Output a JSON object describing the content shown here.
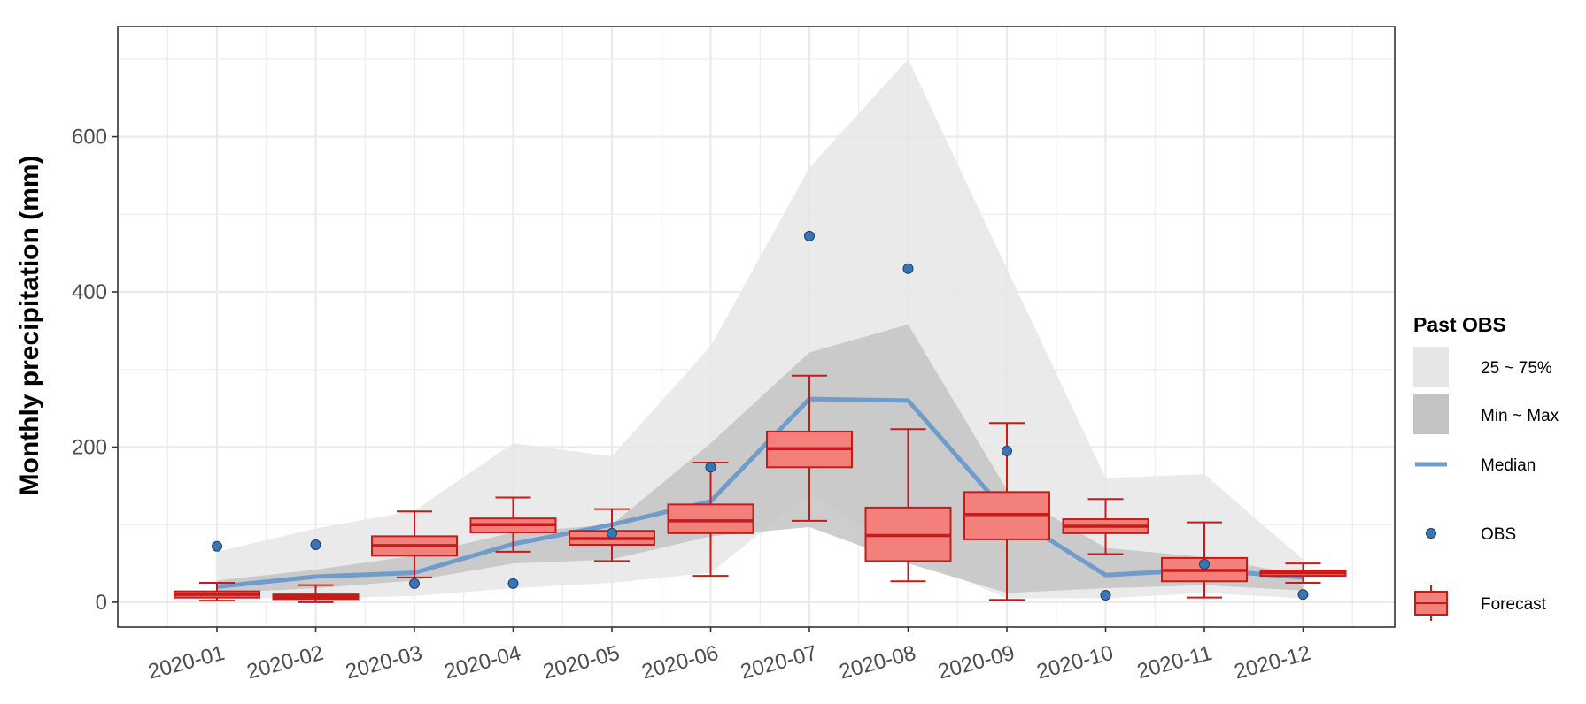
{
  "chart_data": {
    "type": "box",
    "title": "",
    "xlabel": "",
    "ylabel": "Monthly precipitation (mm)",
    "ylim": [
      -32,
      742
    ],
    "yticks": [
      0,
      200,
      400,
      600
    ],
    "grid": true,
    "legend_position": "right",
    "categories": [
      "2020-01",
      "2020-02",
      "2020-03",
      "2020-04",
      "2020-05",
      "2020-06",
      "2020-07",
      "2020-08",
      "2020-09",
      "2020-10",
      "2020-11",
      "2020-12"
    ],
    "legend": {
      "title": "Past OBS",
      "items": [
        "25 ~ 75%",
        "Min ~ Max",
        "Median",
        "OBS",
        "Forecast"
      ]
    },
    "colors": {
      "band_outer": "#e6e6e6",
      "band_inner": "#c4c4c4",
      "median": "#6f9ccb",
      "obs_fill": "#3a74b4",
      "forecast_fill": "#f4807b",
      "forecast_line": "#c41b1b"
    },
    "series": [
      {
        "name": "Min ~ Max",
        "lower": [
          5,
          5,
          8,
          18,
          25,
          38,
          140,
          60,
          5,
          5,
          12,
          5
        ],
        "upper": [
          65,
          95,
          118,
          205,
          188,
          330,
          560,
          700,
          430,
          160,
          165,
          55
        ]
      },
      {
        "name": "25 ~ 75%",
        "lower": [
          12,
          18,
          28,
          50,
          55,
          85,
          97,
          50,
          12,
          18,
          22,
          15
        ],
        "upper": [
          28,
          42,
          60,
          90,
          100,
          205,
          322,
          358,
          145,
          70,
          58,
          35
        ]
      },
      {
        "name": "Median",
        "values": [
          20,
          33,
          38,
          75,
          100,
          130,
          262,
          260,
          115,
          35,
          42,
          32
        ]
      },
      {
        "name": "OBS",
        "values": [
          72,
          74,
          24,
          24,
          89,
          174,
          472,
          430,
          195,
          9,
          49,
          10
        ]
      },
      {
        "name": "Forecast",
        "boxes": [
          {
            "min": 2,
            "q1": 6,
            "median": 10,
            "q3": 14,
            "max": 25
          },
          {
            "min": 0,
            "q1": 4,
            "median": 7,
            "q3": 10,
            "max": 22
          },
          {
            "min": 32,
            "q1": 60,
            "median": 73,
            "q3": 85,
            "max": 117
          },
          {
            "min": 65,
            "q1": 90,
            "median": 100,
            "q3": 108,
            "max": 135
          },
          {
            "min": 53,
            "q1": 74,
            "median": 82,
            "q3": 92,
            "max": 120
          },
          {
            "min": 34,
            "q1": 89,
            "median": 105,
            "q3": 126,
            "max": 180
          },
          {
            "min": 105,
            "q1": 174,
            "median": 198,
            "q3": 220,
            "max": 292
          },
          {
            "min": 27,
            "q1": 53,
            "median": 86,
            "q3": 122,
            "max": 223
          },
          {
            "min": 3,
            "q1": 81,
            "median": 113,
            "q3": 142,
            "max": 231
          },
          {
            "min": 62,
            "q1": 89,
            "median": 98,
            "q3": 107,
            "max": 133
          },
          {
            "min": 6,
            "q1": 27,
            "median": 41,
            "q3": 57,
            "max": 103
          },
          {
            "min": 25,
            "q1": 34,
            "median": 38,
            "q3": 41,
            "max": 50
          }
        ]
      }
    ]
  }
}
